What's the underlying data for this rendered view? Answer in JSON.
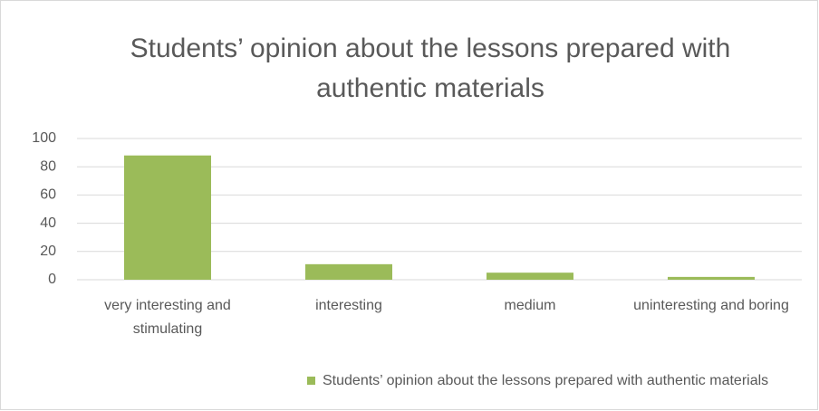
{
  "chart_data": {
    "type": "bar",
    "title": "Students’ opinion about the lessons prepared with authentic materials",
    "categories": [
      "very interesting and stimulating",
      "interesting",
      "medium",
      "uninteresting and boring"
    ],
    "series": [
      {
        "name": "Students’ opinion about the lessons prepared with authentic materials",
        "color": "#9bbb59",
        "values": [
          88,
          11,
          5,
          2
        ]
      }
    ],
    "ylim": [
      0,
      100
    ],
    "yticks": [
      0,
      20,
      40,
      60,
      80,
      100
    ],
    "grid": true,
    "legend": "bottom"
  }
}
